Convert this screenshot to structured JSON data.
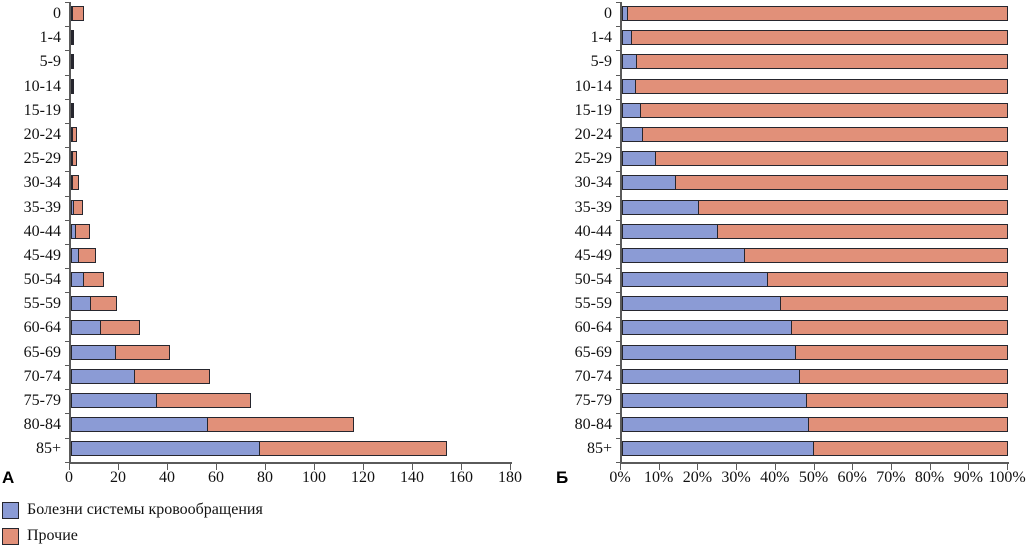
{
  "panels": {
    "a": "А",
    "b": "Б"
  },
  "colors": {
    "circulatory": "#8B9BD5",
    "other": "#E19079",
    "bar_border": "#26262e",
    "axis": "#5a5a5a",
    "text": "#111111"
  },
  "legend": {
    "items": [
      {
        "label": "Болезни системы кровообращения",
        "color_key": "circulatory"
      },
      {
        "label": "Прочие",
        "color_key": "other"
      }
    ]
  },
  "chart_data": [
    {
      "type": "bar",
      "orientation": "horizontal",
      "stacked": true,
      "panel_label": "А",
      "title": "",
      "xlabel": "",
      "ylabel": "",
      "grid": false,
      "legend_position": "bottom-left",
      "categories": [
        "0",
        "1-4",
        "5-9",
        "10-14",
        "15-19",
        "20-24",
        "25-29",
        "30-34",
        "35-39",
        "40-44",
        "45-49",
        "50-54",
        "55-59",
        "60-64",
        "65-69",
        "70-74",
        "75-79",
        "80-84",
        "85+"
      ],
      "series": [
        {
          "name": "Болезни системы кровообращения",
          "color_key": "circulatory",
          "values": [
            0.07,
            0.02,
            0.02,
            0.03,
            0.05,
            0.12,
            0.2,
            0.45,
            1.1,
            2.1,
            3.4,
            5.2,
            8.0,
            12.4,
            18.3,
            26.3,
            35.3,
            56.0,
            77.0
          ]
        },
        {
          "name": "Прочие",
          "color_key": "other",
          "values": [
            4.7,
            0.75,
            0.5,
            0.65,
            0.95,
            2.0,
            2.1,
            2.8,
            4.4,
            6.2,
            7.3,
            8.6,
            11.0,
            16.1,
            22.5,
            30.8,
            38.7,
            60.0,
            77.0
          ]
        }
      ],
      "xlim": [
        0,
        180
      ],
      "xticks": [
        0,
        20,
        40,
        60,
        80,
        100,
        120,
        140,
        160,
        180
      ],
      "xtick_labels": [
        "0",
        "20",
        "40",
        "60",
        "80",
        "100",
        "120",
        "140",
        "160",
        "180"
      ]
    },
    {
      "type": "bar",
      "orientation": "horizontal",
      "stacked": true,
      "panel_label": "Б",
      "title": "",
      "xlabel": "",
      "ylabel": "",
      "grid": false,
      "categories": [
        "0",
        "1-4",
        "5-9",
        "10-14",
        "15-19",
        "20-24",
        "25-29",
        "30-34",
        "35-39",
        "40-44",
        "45-49",
        "50-54",
        "55-59",
        "60-64",
        "65-69",
        "70-74",
        "75-79",
        "80-84",
        "85+"
      ],
      "series": [
        {
          "name": "Болезни системы кровообращения",
          "color_key": "circulatory",
          "values": [
            1.5,
            2.7,
            3.9,
            3.6,
            4.9,
            5.3,
            8.7,
            14.0,
            19.8,
            24.9,
            31.8,
            37.6,
            41.2,
            43.9,
            44.9,
            45.9,
            47.8,
            48.3,
            49.5
          ]
        },
        {
          "name": "Прочие",
          "color_key": "other",
          "values": [
            98.5,
            97.3,
            96.1,
            96.4,
            95.1,
            94.7,
            91.3,
            86.0,
            80.2,
            75.1,
            68.2,
            62.4,
            58.8,
            56.1,
            55.1,
            54.1,
            52.2,
            51.7,
            50.5
          ]
        }
      ],
      "xlim": [
        0,
        100
      ],
      "xticks": [
        0,
        10,
        20,
        30,
        40,
        50,
        60,
        70,
        80,
        90,
        100
      ],
      "xtick_labels": [
        "0%",
        "10%",
        "20%",
        "30%",
        "40%",
        "50%",
        "60%",
        "70%",
        "80%",
        "90%",
        "100%"
      ]
    }
  ]
}
